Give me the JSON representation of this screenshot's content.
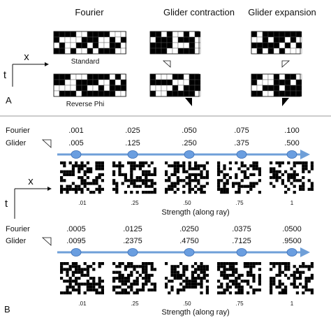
{
  "panel_a": {
    "label": "A",
    "columns": [
      "Fourier",
      "Glider contraction",
      "Glider expansion"
    ],
    "row_labels": [
      "Standard",
      "Reverse Phi"
    ],
    "axis_x": "x",
    "axis_t": "t"
  },
  "panel_b": {
    "label": "B",
    "axis_x": "x",
    "axis_t": "t",
    "rays": [
      {
        "fourier_label": "Fourier",
        "glider_label": "Glider",
        "fourier_values": [
          ".001",
          ".025",
          ".050",
          ".075",
          ".100"
        ],
        "glider_values": [
          ".005",
          ".125",
          ".250",
          ".375",
          ".500"
        ],
        "strengths": [
          ".01",
          ".25",
          ".50",
          ".75",
          "1"
        ],
        "strength_label": "Strength (along ray)"
      },
      {
        "fourier_label": "Fourier",
        "glider_label": "Glider",
        "fourier_values": [
          ".0005",
          ".0125",
          ".0250",
          ".0375",
          ".0500"
        ],
        "glider_values": [
          ".0095",
          ".2375",
          ".4750",
          ".7125",
          ".9500"
        ],
        "strengths": [
          ".01",
          ".25",
          ".50",
          ".75",
          "1"
        ],
        "strength_label": "Strength (along ray)"
      }
    ]
  },
  "colors": {
    "ray_line": "#6f9fd8",
    "ray_dot": "#6a9ee0",
    "ray_dot_stroke": "#3c6fb5",
    "divider": "#999999",
    "pattern_dark": "#000000",
    "pattern_light": "#ffffff"
  }
}
